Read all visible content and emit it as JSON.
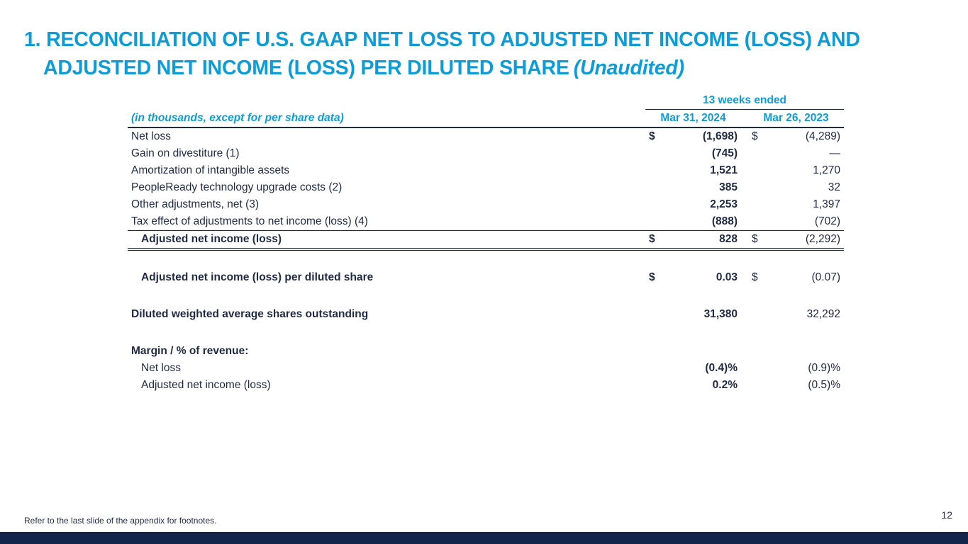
{
  "slide": {
    "title_line1": "1. RECONCILIATION OF U.S. GAAP NET LOSS TO ADJUSTED NET INCOME (LOSS) AND",
    "title_line2": "ADJUSTED NET INCOME (LOSS) PER DILUTED SHARE",
    "title_unaudited": "(Unaudited)",
    "footer_note": "Refer to the last slide of the appendix for footnotes.",
    "page_number": "12"
  },
  "colors": {
    "accent": "#0C9DD9",
    "body_text": "#1F2A44",
    "bottom_bar": "#14254C"
  },
  "table": {
    "period_header": "13 weeks ended",
    "caption": "(in thousands, except for per share data)",
    "columns": [
      "Mar 31, 2024",
      "Mar 26, 2023"
    ],
    "rows": [
      {
        "label": "Net loss",
        "d1": "$",
        "v1": "(1,698)",
        "d2": "$",
        "v2": "(4,289)"
      },
      {
        "label": "Gain on divestiture (1)",
        "d1": "",
        "v1": "(745)",
        "d2": "",
        "v2": "—"
      },
      {
        "label": "Amortization of intangible assets",
        "d1": "",
        "v1": "1,521",
        "d2": "",
        "v2": "1,270"
      },
      {
        "label": "PeopleReady technology upgrade costs (2)",
        "d1": "",
        "v1": "385",
        "d2": "",
        "v2": "32"
      },
      {
        "label": "Other adjustments, net (3)",
        "d1": "",
        "v1": "2,253",
        "d2": "",
        "v2": "1,397"
      },
      {
        "label": "Tax effect of adjustments to net income (loss) (4)",
        "d1": "",
        "v1": "(888)",
        "d2": "",
        "v2": "(702)"
      },
      {
        "label": "Adjusted net income (loss)",
        "d1": "$",
        "v1": "828",
        "d2": "$",
        "v2": "(2,292)"
      },
      {
        "label": "Adjusted net income (loss) per diluted share",
        "d1": "$",
        "v1": "0.03",
        "d2": "$",
        "v2": "(0.07)"
      },
      {
        "label": "Diluted weighted average shares outstanding",
        "d1": "",
        "v1": "31,380",
        "d2": "",
        "v2": "32,292"
      },
      {
        "label": "Margin / % of revenue:",
        "d1": "",
        "v1": "",
        "d2": "",
        "v2": ""
      },
      {
        "label": "Net loss",
        "d1": "",
        "v1": "(0.4)%",
        "d2": "",
        "v2": "(0.9)%"
      },
      {
        "label": "Adjusted net income (loss)",
        "d1": "",
        "v1": "0.2%",
        "d2": "",
        "v2": "(0.5)%"
      }
    ]
  }
}
